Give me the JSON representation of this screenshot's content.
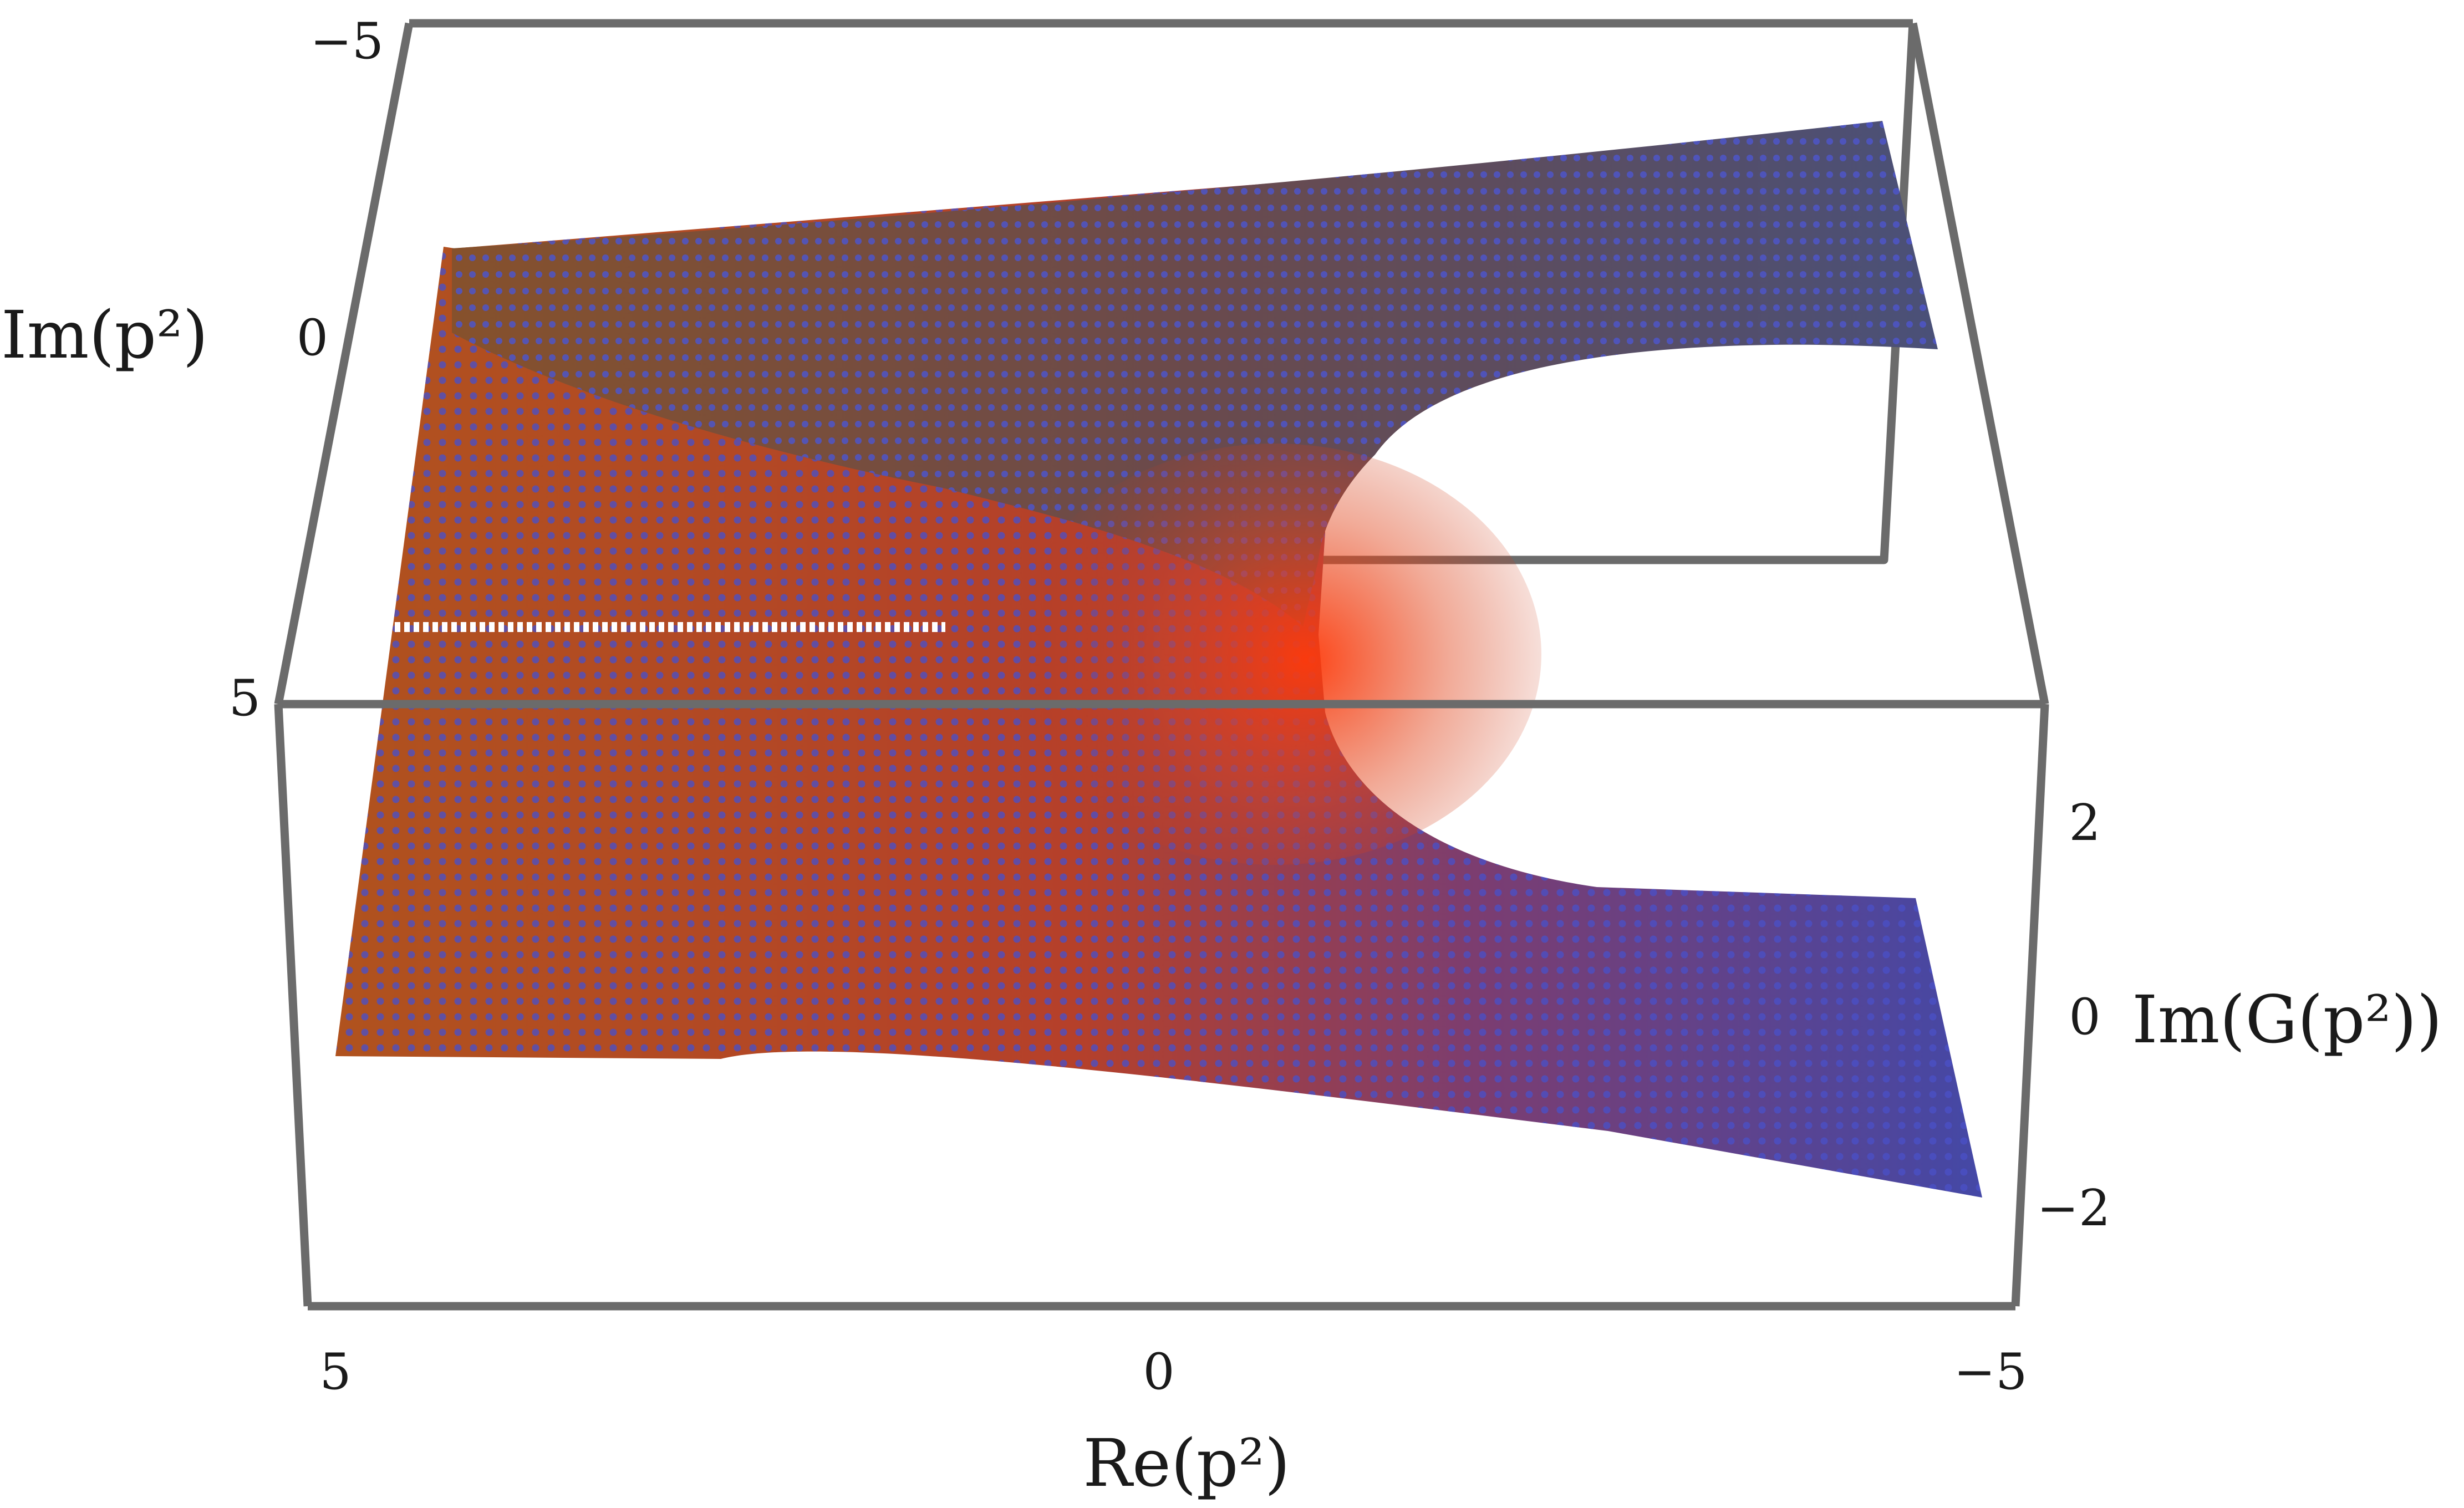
{
  "chart_data": {
    "type": "surface3d",
    "title": "",
    "axes": {
      "x": {
        "label": "Re(p²)",
        "range": [
          -5,
          5
        ],
        "ticks": [
          "5",
          "0",
          "−5"
        ]
      },
      "y": {
        "label": "Im(p²)",
        "range": [
          -5,
          5
        ],
        "ticks": [
          "−5",
          "0",
          "5"
        ]
      },
      "z": {
        "label": "Im(G(p²))",
        "range": [
          -3,
          3
        ],
        "ticks": [
          "2",
          "0",
          "−2"
        ]
      }
    },
    "surface": {
      "description_of_data": "Im(G(p²)) over the complex p² plane, sampled on a point grid",
      "grid_points_per_axis": 61,
      "branch_cut": {
        "along": "Re(p²)",
        "from": 1.1,
        "to": 5,
        "im": 0
      },
      "colors": {
        "low": "#c0391b",
        "high": "#3a3fb8",
        "peak": "#ff3a0a",
        "cut": "#ffffff"
      }
    },
    "box_color": "#6b6b6b",
    "grid": false,
    "legend": "none"
  }
}
